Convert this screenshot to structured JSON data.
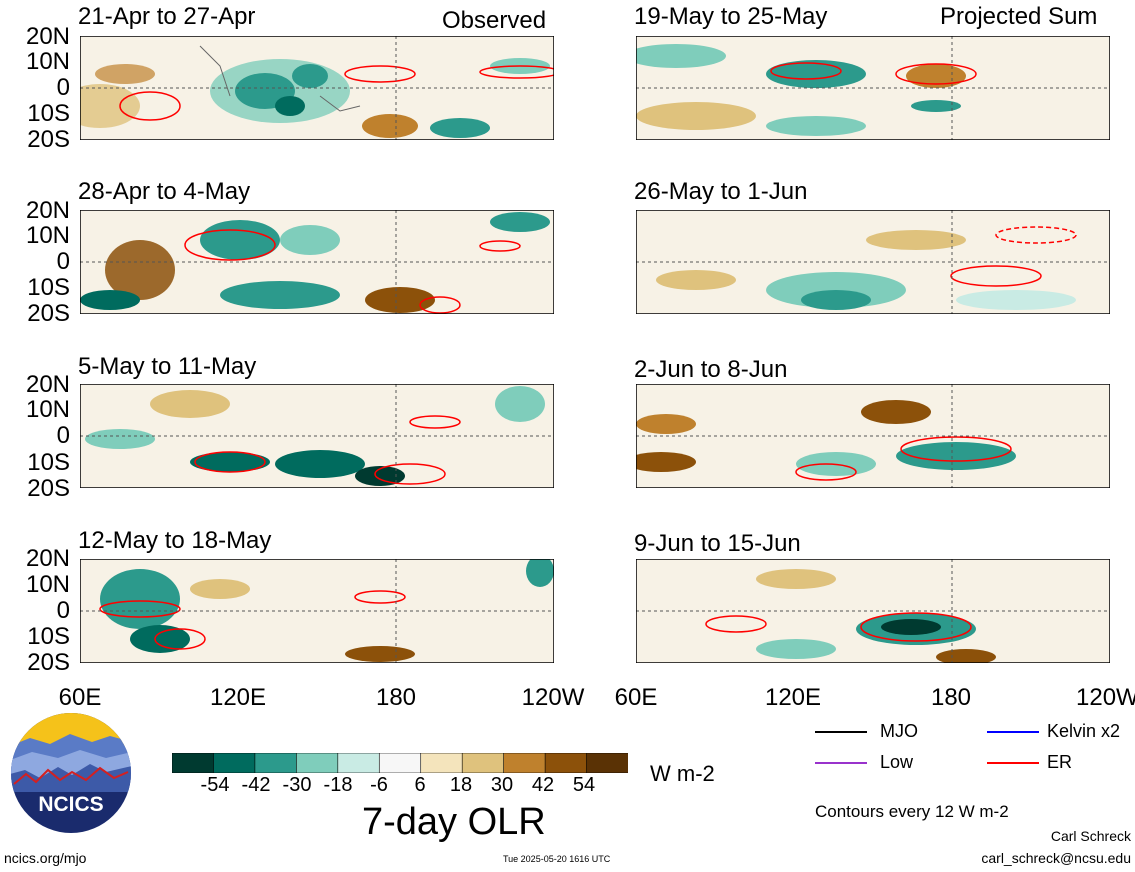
{
  "observed_label": "Observed",
  "projected_label": "Projected Sum",
  "panels_observed": [
    {
      "title": "21-Apr to 27-Apr"
    },
    {
      "title": "28-Apr to 4-May"
    },
    {
      "title": "5-May to 11-May"
    },
    {
      "title": "12-May to 18-May"
    }
  ],
  "panels_projected": [
    {
      "title": "19-May to 25-May"
    },
    {
      "title": "26-May to 1-Jun"
    },
    {
      "title": "2-Jun to 8-Jun"
    },
    {
      "title": "9-Jun to 15-Jun"
    }
  ],
  "lat_labels": [
    "20N",
    "10N",
    "0",
    "10S",
    "20S"
  ],
  "lon_labels": [
    "60E",
    "120E",
    "180",
    "120W"
  ],
  "colorbar": {
    "colors": [
      "#003a30",
      "#006b5e",
      "#2c9a8c",
      "#7fcdbb",
      "#c9ebe4",
      "#f7f7f7",
      "#f4e4bc",
      "#dfc27d",
      "#bf812d",
      "#8c510a",
      "#5a3205"
    ],
    "labels": [
      "-54",
      "-42",
      "-30",
      "-18",
      "-6",
      "6",
      "18",
      "30",
      "42",
      "54"
    ],
    "units": "W m-2",
    "title": "7-day OLR"
  },
  "legend": {
    "items": [
      {
        "label": "MJO",
        "color": "#000000"
      },
      {
        "label": "Kelvin x2",
        "color": "#0000ff"
      },
      {
        "label": "Low",
        "color": "#9932cc"
      },
      {
        "label": "ER",
        "color": "#ff0000"
      }
    ],
    "contours_note": "Contours every 12 W m-2"
  },
  "logo": {
    "text": "NCICS"
  },
  "footer": {
    "url": "ncics.org/mjo",
    "timestamp": "Tue 2025-05-20 1616 UTC",
    "author": "Carl Schreck",
    "email": "carl_schreck@ncsu.edu"
  }
}
